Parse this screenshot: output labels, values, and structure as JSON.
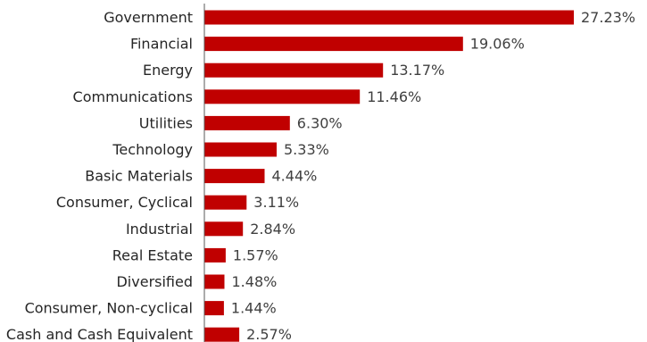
{
  "chart_data": {
    "type": "bar",
    "orientation": "horizontal",
    "categories": [
      "Government",
      "Financial",
      "Energy",
      "Communications",
      "Utilities",
      "Technology",
      "Basic Materials",
      "Consumer, Cyclical",
      "Industrial",
      "Real Estate",
      "Diversified",
      "Consumer, Non-cyclical",
      "Cash and Cash Equivalent"
    ],
    "values": [
      27.23,
      19.06,
      13.17,
      11.46,
      6.3,
      5.33,
      4.44,
      3.11,
      2.84,
      1.57,
      1.48,
      1.44,
      2.57
    ],
    "value_labels": [
      "27.23%",
      "19.06%",
      "13.17%",
      "11.46%",
      "6.30%",
      "5.33%",
      "4.44%",
      "3.11%",
      "2.84%",
      "1.57%",
      "1.48%",
      "1.44%",
      "2.57%"
    ],
    "unit": "%",
    "xlim": [
      0,
      27.23
    ],
    "grid": false,
    "legend": "none",
    "bar_color": "#c00000",
    "axis_color": "#595959"
  }
}
